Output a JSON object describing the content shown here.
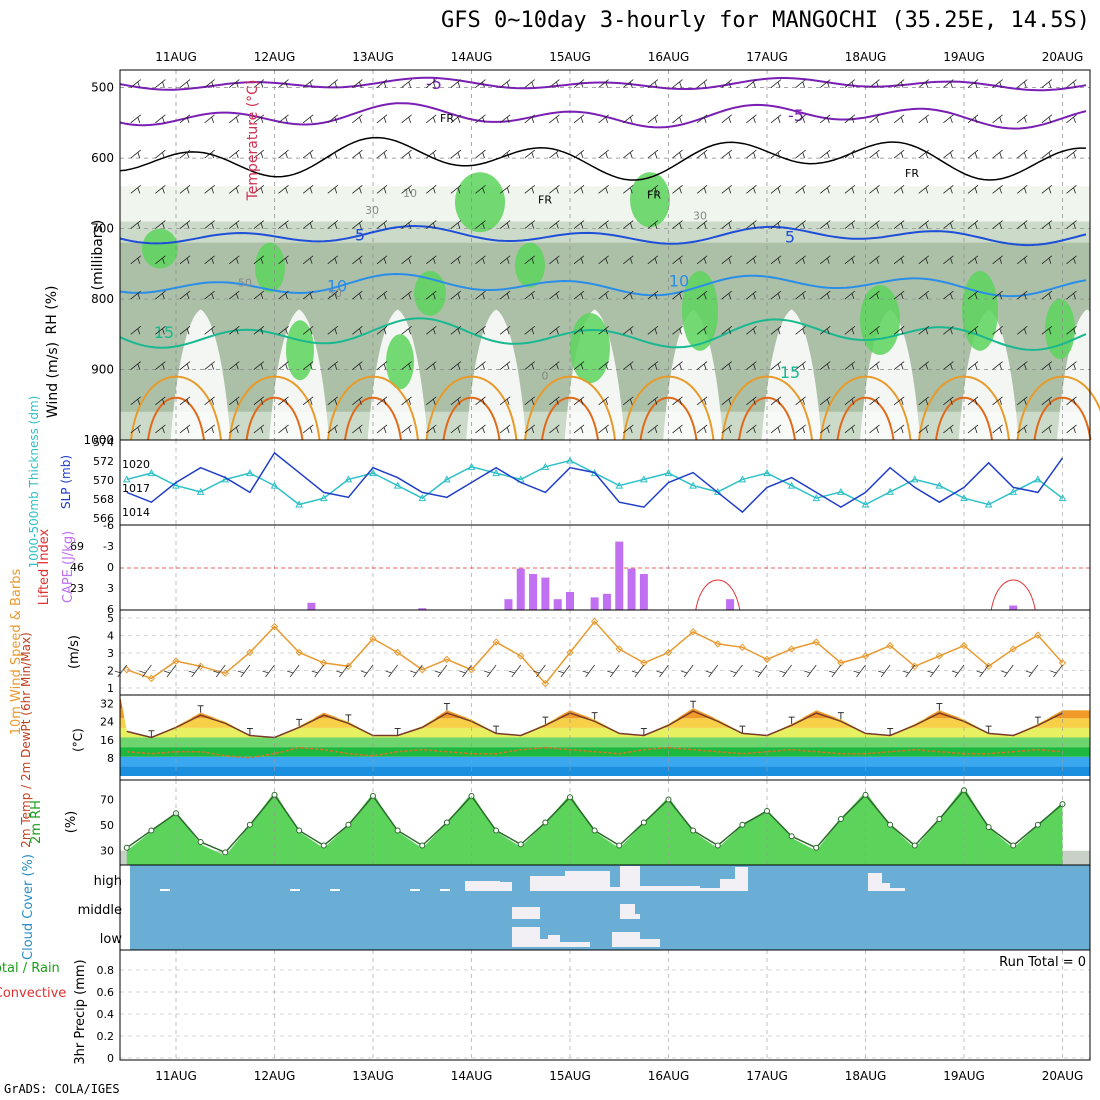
{
  "title": "GFS 0~10day 3-hourly for MANGOCHI (35.25E, 14.5S)",
  "credit": "GrADS: COLA/IGES",
  "dates": [
    "11AUG",
    "12AUG",
    "13AUG",
    "14AUG",
    "15AUG",
    "16AUG",
    "17AUG",
    "18AUG",
    "19AUG",
    "20AUG"
  ],
  "colors": {
    "temp_purple": "#7a1fb4",
    "temp_blue": "#1f4fd8",
    "temp_lblue": "#2a8ee8",
    "temp_teal": "#1ab890",
    "temp_orange": "#e89a2a",
    "slp": "#1f3fc8",
    "thickness": "#2fc0c8",
    "cape": "#c070f0",
    "lifted": "#e03030",
    "wind": "#e89a30",
    "rh": "#1ad01a",
    "cloud_bg": "#6aaed6",
    "cloud_bar": "#f2f0f4"
  },
  "panels": {
    "upper": {
      "ylabel_wind": "Wind (m/s)",
      "ylabel_temp": "Temperature (°C)",
      "ylabel_rh": "RH (%)",
      "ylabel_units": "(millibars)",
      "ticks": [
        "500",
        "600",
        "700",
        "800",
        "900",
        "1000"
      ],
      "contour_labels": [
        "-5",
        "-5",
        "FR",
        "FR",
        "FR",
        "FR",
        "5",
        "5",
        "10",
        "10",
        "15",
        "15",
        "0",
        "10",
        "30",
        "30",
        "50",
        "50"
      ]
    },
    "slp": {
      "ylabel_thick": "1000-500mb Thickness (dm)",
      "ylabel_slp": "SLP (mb)",
      "left_ticks": [
        "574",
        "572",
        "570",
        "568",
        "566"
      ],
      "right_ticks": [
        "1020",
        "1017",
        "1014"
      ]
    },
    "cape": {
      "ylabel_li": "Lifted Index",
      "ylabel_cape": "CAPE (J/kg)",
      "left_ticks": [
        "-6",
        "-3",
        "0",
        "3",
        "6"
      ],
      "right_ticks": [
        "69",
        "46",
        "23"
      ]
    },
    "wind": {
      "ylabel": "10m Wind Speed & Barbs",
      "ylabel_units": "(m/s)",
      "ticks": [
        "5",
        "4",
        "3",
        "2",
        "1"
      ]
    },
    "temp": {
      "ylabel": "2m Temp / 2m DewPt (6hr Min/Max)",
      "ylabel_units": "(°C)",
      "ticks": [
        "32",
        "24",
        "16",
        "8"
      ]
    },
    "rh": {
      "ylabel": "2m RH",
      "ylabel_units": "(%)",
      "ticks": [
        "70",
        "50",
        "30"
      ]
    },
    "cloud": {
      "ylabel": "Cloud Cover (%)",
      "levels": [
        "high",
        "middle",
        "low"
      ]
    },
    "precip": {
      "ylabel": "3hr Precip (mm)",
      "ylabel_total": "Total / Rain",
      "ylabel_conv": "Convective",
      "run_total": "Run Total = 0",
      "ticks": [
        "0.8",
        "0.6",
        "0.4",
        "0.2",
        "0"
      ]
    }
  },
  "chart_data": [
    {
      "type": "line",
      "name": "2m Temperature",
      "unit": "°C",
      "x": [
        "10AUG 18Z",
        "11AUG 00Z",
        "11AUG 06Z",
        "11AUG 12Z",
        "11AUG 18Z",
        "12AUG 00Z",
        "12AUG 06Z",
        "12AUG 12Z",
        "12AUG 18Z",
        "13AUG 00Z",
        "13AUG 06Z",
        "13AUG 12Z",
        "13AUG 18Z",
        "14AUG 00Z",
        "14AUG 06Z",
        "14AUG 12Z",
        "14AUG 18Z",
        "15AUG 00Z",
        "15AUG 06Z",
        "15AUG 12Z",
        "15AUG 18Z",
        "16AUG 00Z",
        "16AUG 06Z",
        "16AUG 12Z",
        "16AUG 18Z",
        "17AUG 00Z",
        "17AUG 06Z",
        "17AUG 12Z",
        "17AUG 18Z",
        "18AUG 00Z",
        "18AUG 06Z",
        "18AUG 12Z",
        "18AUG 18Z",
        "19AUG 00Z",
        "19AUG 06Z",
        "19AUG 12Z",
        "19AUG 18Z",
        "20AUG 00Z",
        "20AUG 06Z"
      ],
      "series": [
        {
          "name": "2m Temp",
          "values": [
            20,
            17,
            22,
            28,
            24,
            18,
            17,
            22,
            28,
            24,
            18,
            18,
            22,
            29,
            25,
            19,
            18,
            23,
            29,
            25,
            19,
            18,
            23,
            30,
            25,
            19,
            18,
            23,
            29,
            25,
            19,
            18,
            23,
            29,
            25,
            19,
            18,
            23,
            29
          ]
        },
        {
          "name": "2m DewPt",
          "values": [
            10,
            9,
            10,
            10,
            8,
            7,
            9,
            12,
            11,
            9,
            8,
            10,
            11,
            10,
            9,
            9,
            11,
            12,
            11,
            10,
            9,
            11,
            12,
            11,
            10,
            9,
            10,
            11,
            10,
            9,
            9,
            10,
            11,
            10,
            9,
            9,
            10,
            11,
            10
          ]
        }
      ],
      "ylim": [
        0,
        34
      ]
    },
    {
      "type": "line",
      "name": "2m RH",
      "unit": "%",
      "x": [
        "10AUG 18Z",
        "11AUG 00Z",
        "11AUG 06Z",
        "11AUG 12Z",
        "11AUG 18Z",
        "12AUG 00Z",
        "12AUG 06Z",
        "12AUG 12Z",
        "12AUG 18Z",
        "13AUG 00Z",
        "13AUG 06Z",
        "13AUG 12Z",
        "13AUG 18Z",
        "14AUG 00Z",
        "14AUG 06Z",
        "14AUG 12Z",
        "14AUG 18Z",
        "15AUG 00Z",
        "15AUG 06Z",
        "15AUG 12Z",
        "15AUG 18Z",
        "16AUG 00Z",
        "16AUG 06Z",
        "16AUG 12Z",
        "16AUG 18Z",
        "17AUG 00Z",
        "17AUG 06Z",
        "17AUG 12Z",
        "17AUG 18Z",
        "18AUG 00Z",
        "18AUG 06Z",
        "18AUG 12Z",
        "18AUG 18Z",
        "19AUG 00Z",
        "19AUG 06Z",
        "19AUG 12Z",
        "19AUG 18Z",
        "20AUG 00Z",
        "20AUG 06Z"
      ],
      "series": [
        {
          "name": "2m RH",
          "values": [
            30,
            45,
            60,
            35,
            26,
            50,
            76,
            45,
            32,
            50,
            75,
            45,
            32,
            52,
            75,
            45,
            33,
            52,
            74,
            45,
            32,
            52,
            72,
            45,
            32,
            50,
            62,
            40,
            30,
            55,
            76,
            50,
            32,
            55,
            80,
            48,
            32,
            50,
            68
          ]
        }
      ],
      "ylim": [
        22,
        82
      ]
    },
    {
      "type": "line",
      "name": "10m Wind Speed",
      "unit": "m/s",
      "x": [
        "10AUG 18Z",
        "11AUG 00Z",
        "11AUG 06Z",
        "11AUG 12Z",
        "11AUG 18Z",
        "12AUG 00Z",
        "12AUG 06Z",
        "12AUG 12Z",
        "12AUG 18Z",
        "13AUG 00Z",
        "13AUG 06Z",
        "13AUG 12Z",
        "13AUG 18Z",
        "14AUG 00Z",
        "14AUG 06Z",
        "14AUG 12Z",
        "14AUG 18Z",
        "15AUG 00Z",
        "15AUG 06Z",
        "15AUG 12Z",
        "15AUG 18Z",
        "16AUG 00Z",
        "16AUG 06Z",
        "16AUG 12Z",
        "16AUG 18Z",
        "17AUG 00Z",
        "17AUG 06Z",
        "17AUG 12Z",
        "17AUG 18Z",
        "18AUG 00Z",
        "18AUG 06Z",
        "18AUG 12Z",
        "18AUG 18Z",
        "19AUG 00Z",
        "19AUG 06Z",
        "19AUG 12Z",
        "19AUG 18Z",
        "20AUG 00Z",
        "20AUG 06Z"
      ],
      "series": [
        {
          "name": "10m Wind Speed",
          "values": [
            2.0,
            1.5,
            2.5,
            2.2,
            1.8,
            3.0,
            4.5,
            3.0,
            2.4,
            2.2,
            3.8,
            3.0,
            2.0,
            2.6,
            2.0,
            3.6,
            2.8,
            1.2,
            3.0,
            4.8,
            3.2,
            2.4,
            3.0,
            4.2,
            3.5,
            3.3,
            2.6,
            3.2,
            3.6,
            2.4,
            2.8,
            3.4,
            2.2,
            2.8,
            3.4,
            2.2,
            3.2,
            4.0,
            2.4
          ]
        }
      ],
      "ylim": [
        1,
        5
      ]
    },
    {
      "type": "bar",
      "name": "CAPE",
      "unit": "J/kg",
      "categories": [
        "12AUG 09Z",
        "13AUG 12Z",
        "14AUG 09Z",
        "14AUG 12Z",
        "14AUG 15Z",
        "14AUG 18Z",
        "14AUG 21Z",
        "15AUG 00Z",
        "15AUG 06Z",
        "15AUG 09Z",
        "15AUG 12Z",
        "15AUG 15Z",
        "15AUG 18Z",
        "16AUG 15Z",
        "19AUG 12Z"
      ],
      "values": [
        8,
        2,
        12,
        46,
        40,
        36,
        12,
        20,
        14,
        18,
        76,
        46,
        40,
        12,
        5
      ],
      "ylim": [
        0,
        90
      ]
    },
    {
      "type": "bar",
      "name": "Cloud Cover",
      "unit": "%",
      "categories": [
        "14AUG",
        "14AUG 12Z",
        "15AUG",
        "15AUG 12Z",
        "16AUG",
        "17AUG",
        "18AUG"
      ],
      "series": [
        {
          "name": "high",
          "values": [
            70,
            40,
            75,
            60,
            20,
            25,
            20
          ]
        },
        {
          "name": "middle",
          "values": [
            0,
            40,
            0,
            60,
            0,
            0,
            0
          ]
        },
        {
          "name": "low",
          "values": [
            0,
            60,
            20,
            50,
            0,
            0,
            0
          ]
        }
      ],
      "ylim": [
        0,
        100
      ]
    },
    {
      "type": "line",
      "name": "3hr Precip",
      "unit": "mm",
      "values": [],
      "ylim": [
        0,
        0.9
      ]
    }
  ]
}
